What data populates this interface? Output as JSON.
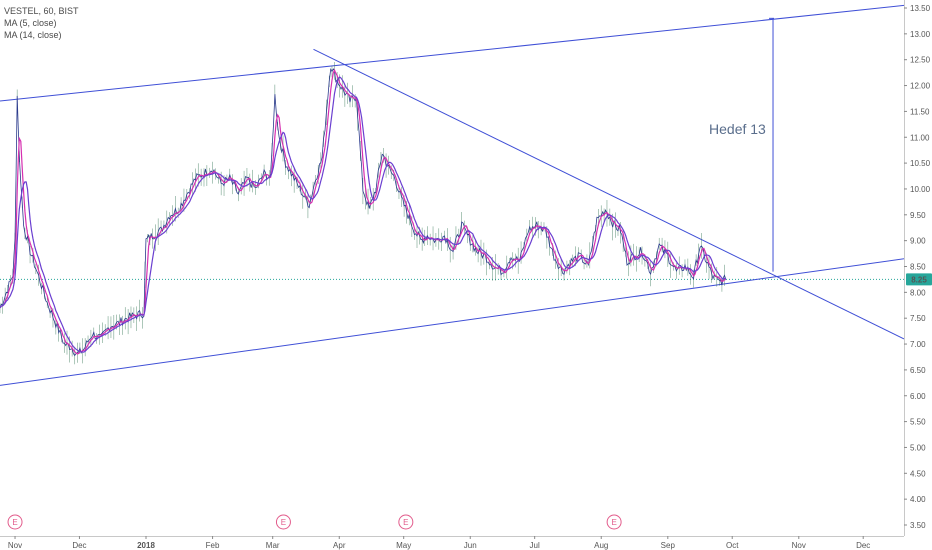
{
  "header": {
    "symbol_line": "VESTEL, 60, BIST",
    "indicator_1": "MA (5, close)",
    "indicator_2": "MA (14, close)"
  },
  "colors": {
    "trendline": "#3f4fd6",
    "price_line": "#2a3a8c",
    "ma_fast": "#d62fb0",
    "ma_slow": "#6a3fd0",
    "price_marker_bg": "#26a69a",
    "price_marker_text": "#ffffff",
    "dotted_level": "#26a69a",
    "earnings_marker": "#e25b8b",
    "axis_text": "#555555",
    "annotation_text": "#5a6e8c"
  },
  "annotation": {
    "text": "Hedef 13"
  },
  "current_price": {
    "value": 8.25,
    "label": "8.25"
  },
  "earnings_markers": {
    "label": "E",
    "dates": [
      "2017-11-01",
      "2018-03-06",
      "2018-05-02",
      "2018-08-07"
    ]
  },
  "chart_data": {
    "type": "line",
    "y_axis": {
      "min": 3.5,
      "max": 13.5,
      "ticks": [
        "3.50",
        "4.00",
        "4.50",
        "5.00",
        "5.50",
        "6.00",
        "6.50",
        "7.00",
        "7.50",
        "8.00",
        "8.50",
        "9.00",
        "9.50",
        "10.00",
        "10.50",
        "11.00",
        "11.50",
        "12.00",
        "12.50",
        "13.00",
        "13.50"
      ]
    },
    "x_axis": {
      "start": "2017-10-25",
      "end": "2018-12-20",
      "ticks": [
        {
          "label": "Nov",
          "date": "2017-11-01"
        },
        {
          "label": "Dec",
          "date": "2017-12-01"
        },
        {
          "label": "2018",
          "date": "2018-01-01"
        },
        {
          "label": "Feb",
          "date": "2018-02-01"
        },
        {
          "label": "Mar",
          "date": "2018-03-01"
        },
        {
          "label": "Apr",
          "date": "2018-04-01"
        },
        {
          "label": "May",
          "date": "2018-05-01"
        },
        {
          "label": "Jun",
          "date": "2018-06-01"
        },
        {
          "label": "Jul",
          "date": "2018-07-01"
        },
        {
          "label": "Aug",
          "date": "2018-08-01"
        },
        {
          "label": "Sep",
          "date": "2018-09-01"
        },
        {
          "label": "Oct",
          "date": "2018-10-01"
        },
        {
          "label": "Nov",
          "date": "2018-11-01"
        },
        {
          "label": "Dec",
          "date": "2018-12-01"
        }
      ]
    },
    "series": [
      {
        "points": [
          [
            "2017-10-25",
            7.7
          ],
          [
            "2017-10-28",
            8.0
          ],
          [
            "2017-10-31",
            8.35
          ],
          [
            "2017-11-01",
            9.0
          ],
          [
            "2017-11-02",
            11.8
          ],
          [
            "2017-11-03",
            10.6
          ],
          [
            "2017-11-05",
            9.3
          ],
          [
            "2017-11-08",
            8.8
          ],
          [
            "2017-11-12",
            8.3
          ],
          [
            "2017-11-16",
            7.8
          ],
          [
            "2017-11-20",
            7.4
          ],
          [
            "2017-11-24",
            7.0
          ],
          [
            "2017-11-27",
            6.95
          ],
          [
            "2017-11-30",
            6.8
          ],
          [
            "2017-12-03",
            6.9
          ],
          [
            "2017-12-07",
            7.2
          ],
          [
            "2017-12-11",
            7.1
          ],
          [
            "2017-12-15",
            7.35
          ],
          [
            "2017-12-19",
            7.4
          ],
          [
            "2017-12-23",
            7.5
          ],
          [
            "2017-12-27",
            7.55
          ],
          [
            "2017-12-31",
            7.6
          ],
          [
            "2018-01-01",
            9.0
          ],
          [
            "2018-01-04",
            9.1
          ],
          [
            "2018-01-08",
            9.2
          ],
          [
            "2018-01-12",
            9.5
          ],
          [
            "2018-01-16",
            9.6
          ],
          [
            "2018-01-20",
            9.9
          ],
          [
            "2018-01-24",
            10.2
          ],
          [
            "2018-01-28",
            10.3
          ],
          [
            "2018-02-01",
            10.4
          ],
          [
            "2018-02-05",
            10.1
          ],
          [
            "2018-02-09",
            10.2
          ],
          [
            "2018-02-13",
            9.9
          ],
          [
            "2018-02-17",
            10.2
          ],
          [
            "2018-02-21",
            10.0
          ],
          [
            "2018-02-25",
            10.3
          ],
          [
            "2018-02-28",
            10.2
          ],
          [
            "2018-03-02",
            11.8
          ],
          [
            "2018-03-04",
            11.0
          ],
          [
            "2018-03-07",
            10.5
          ],
          [
            "2018-03-11",
            10.2
          ],
          [
            "2018-03-15",
            9.9
          ],
          [
            "2018-03-18",
            9.7
          ],
          [
            "2018-03-21",
            10.2
          ],
          [
            "2018-03-24",
            10.6
          ],
          [
            "2018-03-26",
            11.5
          ],
          [
            "2018-03-28",
            12.4
          ],
          [
            "2018-03-31",
            12.1
          ],
          [
            "2018-04-03",
            11.9
          ],
          [
            "2018-04-06",
            11.7
          ],
          [
            "2018-04-09",
            11.8
          ],
          [
            "2018-04-12",
            10.0
          ],
          [
            "2018-04-15",
            9.6
          ],
          [
            "2018-04-18",
            10.0
          ],
          [
            "2018-04-21",
            10.7
          ],
          [
            "2018-04-24",
            10.4
          ],
          [
            "2018-04-27",
            10.2
          ],
          [
            "2018-04-30",
            9.8
          ],
          [
            "2018-05-03",
            9.5
          ],
          [
            "2018-05-06",
            9.2
          ],
          [
            "2018-05-09",
            9.0
          ],
          [
            "2018-05-12",
            9.1
          ],
          [
            "2018-05-16",
            9.0
          ],
          [
            "2018-05-20",
            9.1
          ],
          [
            "2018-05-24",
            8.8
          ],
          [
            "2018-05-28",
            9.3
          ],
          [
            "2018-06-01",
            9.0
          ],
          [
            "2018-06-04",
            8.8
          ],
          [
            "2018-06-08",
            8.7
          ],
          [
            "2018-06-12",
            8.5
          ],
          [
            "2018-06-16",
            8.4
          ],
          [
            "2018-06-20",
            8.7
          ],
          [
            "2018-06-24",
            8.6
          ],
          [
            "2018-06-28",
            9.2
          ],
          [
            "2018-07-02",
            9.3
          ],
          [
            "2018-07-06",
            9.2
          ],
          [
            "2018-07-10",
            8.7
          ],
          [
            "2018-07-14",
            8.4
          ],
          [
            "2018-07-18",
            8.6
          ],
          [
            "2018-07-22",
            8.7
          ],
          [
            "2018-07-26",
            8.5
          ],
          [
            "2018-07-30",
            9.4
          ],
          [
            "2018-08-03",
            9.6
          ],
          [
            "2018-08-07",
            9.3
          ],
          [
            "2018-08-10",
            9.2
          ],
          [
            "2018-08-13",
            8.6
          ],
          [
            "2018-08-16",
            8.7
          ],
          [
            "2018-08-20",
            8.8
          ],
          [
            "2018-08-24",
            8.4
          ],
          [
            "2018-08-28",
            8.9
          ],
          [
            "2018-09-01",
            8.7
          ],
          [
            "2018-09-05",
            8.4
          ],
          [
            "2018-09-09",
            8.5
          ],
          [
            "2018-09-13",
            8.3
          ],
          [
            "2018-09-16",
            8.9
          ],
          [
            "2018-09-19",
            8.6
          ],
          [
            "2018-09-22",
            8.3
          ],
          [
            "2018-09-25",
            8.2
          ],
          [
            "2018-09-28",
            8.25
          ]
        ]
      }
    ],
    "trendlines": [
      {
        "id": "upper-channel",
        "from": [
          "2017-10-25",
          11.7
        ],
        "to": [
          "2018-12-20",
          13.55
        ]
      },
      {
        "id": "lower-channel",
        "from": [
          "2017-10-25",
          6.2
        ],
        "to": [
          "2018-12-20",
          8.65
        ]
      },
      {
        "id": "descending-resistance",
        "from": [
          "2018-03-20",
          12.7
        ],
        "to": [
          "2018-12-20",
          7.1
        ]
      }
    ],
    "target_projection": {
      "date": "2018-10-20",
      "from_price": 8.4,
      "to_price": 13.3
    }
  }
}
